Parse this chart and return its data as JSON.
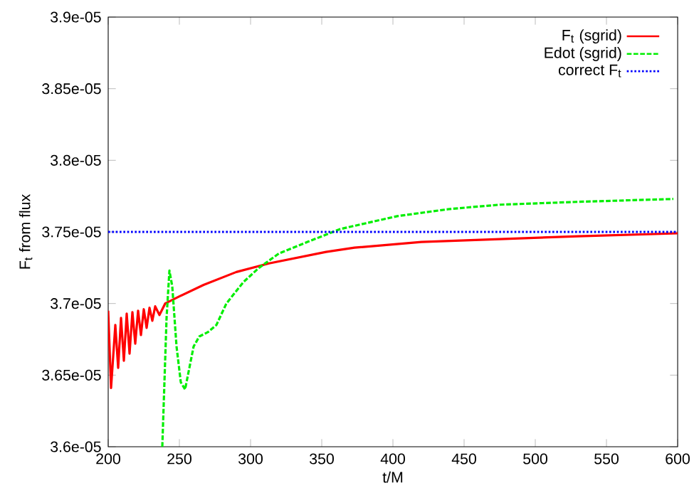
{
  "chart_data": {
    "type": "line",
    "xlabel": "t/M",
    "ylabel": "F$_{t}$ from flux",
    "xlim": [
      200,
      600
    ],
    "xticks": [
      200,
      250,
      300,
      350,
      400,
      450,
      500,
      550,
      600
    ],
    "ylim": [
      3.6e-05,
      3.9e-05
    ],
    "yticks": [
      {
        "value": 3.6e-05,
        "label": "3.6e-05"
      },
      {
        "value": 3.65e-05,
        "label": "3.65e-05"
      },
      {
        "value": 3.7e-05,
        "label": "3.7e-05"
      },
      {
        "value": 3.75e-05,
        "label": "3.75e-05"
      },
      {
        "value": 3.8e-05,
        "label": "3.8e-05"
      },
      {
        "value": 3.85e-05,
        "label": "3.85e-05"
      },
      {
        "value": 3.9e-05,
        "label": "3.9e-05"
      }
    ],
    "legend": "top right",
    "grid": false,
    "marker": "none",
    "series": [
      {
        "name": "F$_{t}$ (sgrid)",
        "color": "#ff0000",
        "line_style": "solid",
        "x": [
          200,
          202,
          205,
          207,
          209,
          211,
          213,
          215,
          217,
          219,
          221,
          223,
          225,
          227,
          229,
          231,
          233,
          236,
          240,
          250,
          267,
          290,
          313,
          353,
          373,
          420,
          475,
          530,
          600
        ],
        "values": [
          3.695e-05,
          3.641e-05,
          3.685e-05,
          3.655e-05,
          3.69e-05,
          3.66e-05,
          3.693e-05,
          3.665e-05,
          3.694e-05,
          3.672e-05,
          3.695e-05,
          3.678e-05,
          3.696e-05,
          3.683e-05,
          3.697e-05,
          3.688e-05,
          3.698e-05,
          3.692e-05,
          3.7e-05,
          3.705e-05,
          3.713e-05,
          3.722e-05,
          3.728e-05,
          3.736e-05,
          3.739e-05,
          3.743e-05,
          3.745e-05,
          3.747e-05,
          3.749e-05
        ]
      },
      {
        "name": "Edot (sgrid)",
        "color": "#00ee00",
        "line_style": "dashed",
        "x": [
          238,
          241,
          243,
          245,
          248,
          251,
          254,
          257,
          260,
          264,
          270,
          276,
          283,
          295,
          306,
          320,
          340,
          363,
          403,
          440,
          475,
          530,
          597
        ],
        "values": [
          3.6e-05,
          3.69e-05,
          3.723e-05,
          3.712e-05,
          3.67e-05,
          3.645e-05,
          3.64e-05,
          3.655e-05,
          3.67e-05,
          3.677e-05,
          3.68e-05,
          3.685e-05,
          3.7e-05,
          3.715e-05,
          3.725e-05,
          3.735e-05,
          3.743e-05,
          3.752e-05,
          3.761e-05,
          3.766e-05,
          3.769e-05,
          3.771e-05,
          3.773e-05
        ]
      },
      {
        "name": "correct F$_{t}$",
        "color": "#0000ff",
        "line_style": "dotted",
        "x": [
          200,
          600
        ],
        "values": [
          3.75e-05,
          3.75e-05
        ]
      }
    ]
  }
}
